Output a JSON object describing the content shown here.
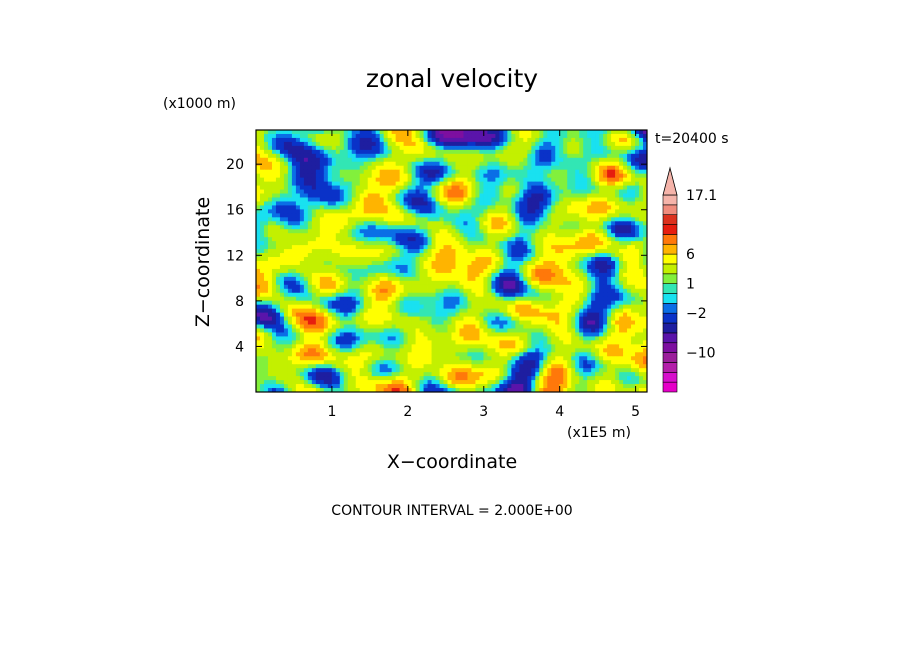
{
  "chart_data": {
    "type": "heatmap",
    "title": "zonal velocity",
    "xlabel": "X−coordinate",
    "ylabel": "Z−coordinate",
    "x_unit_label": "(x1E5 m)",
    "y_unit_label": "(x1000 m)",
    "time_label": "t=20400 s",
    "footer": "CONTOUR INTERVAL = 2.000E+00",
    "xlim": [
      0,
      5.15
    ],
    "ylim": [
      0,
      23
    ],
    "x_ticks": [
      {
        "value": 1,
        "label": "1"
      },
      {
        "value": 2,
        "label": "2"
      },
      {
        "value": 3,
        "label": "3"
      },
      {
        "value": 4,
        "label": "4"
      },
      {
        "value": 5,
        "label": "5"
      }
    ],
    "y_ticks": [
      {
        "value": 4,
        "label": "4"
      },
      {
        "value": 8,
        "label": "8"
      },
      {
        "value": 12,
        "label": "12"
      },
      {
        "value": 16,
        "label": "16"
      },
      {
        "value": 20,
        "label": "20"
      }
    ],
    "colorbar": {
      "levels": [
        -18,
        -16,
        -14,
        -12,
        -10,
        -8,
        -6,
        -4,
        -2,
        -1,
        0,
        1,
        2,
        4,
        6,
        8,
        10,
        12,
        14,
        16,
        17.1
      ],
      "colors": [
        "#e600c8",
        "#d70fcc",
        "#b41eaa",
        "#9b1e9b",
        "#7d0fa0",
        "#5a14aa",
        "#1e1ea0",
        "#0a32c8",
        "#0a6ee6",
        "#19e1f0",
        "#32e6b4",
        "#82f03c",
        "#c3f000",
        "#ffff00",
        "#ffb400",
        "#ff780a",
        "#e61e0f",
        "#dc321e",
        "#f08c7d",
        "#f5b4aa"
      ],
      "labels": [
        {
          "value": 17.1,
          "label": "17.1"
        },
        {
          "value": 6,
          "label": "6"
        },
        {
          "value": 1,
          "label": "1"
        },
        {
          "value": -2,
          "label": "−2"
        },
        {
          "value": -10,
          "label": "−10"
        }
      ]
    },
    "field_note": "turbulent zonal velocity field: mostly green/yellow/orange near zero to positive, blue negative streaks in upper layer"
  }
}
